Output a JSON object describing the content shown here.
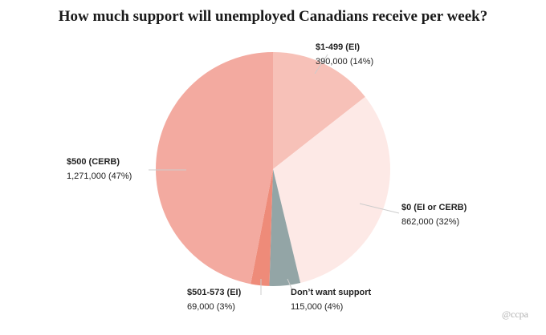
{
  "chart_data": {
    "type": "pie",
    "title": "How much support will unemployed Canadians receive per week?",
    "slices": [
      {
        "label": "$1-499 (EI)",
        "value_text": "390,000 (14%)",
        "value": 390000,
        "percent": 14,
        "color": "#f7c1b8"
      },
      {
        "label": "$0 (EI or CERB)",
        "value_text": "862,000 (32%)",
        "value": 862000,
        "percent": 32,
        "color": "#fde9e6"
      },
      {
        "label": "Don’t want support",
        "value_text": "115,000 (4%)",
        "value": 115000,
        "percent": 4,
        "color": "#93a5a6"
      },
      {
        "label": "$501-573 (EI)",
        "value_text": "69,000 (3%)",
        "value": 69000,
        "percent": 3,
        "color": "#ee8b79"
      },
      {
        "label": "$500 (CERB)",
        "value_text": "1,271,000 (47%)",
        "value": 1271000,
        "percent": 47,
        "color": "#f3aaa0"
      }
    ]
  },
  "credit": "@ccpa"
}
